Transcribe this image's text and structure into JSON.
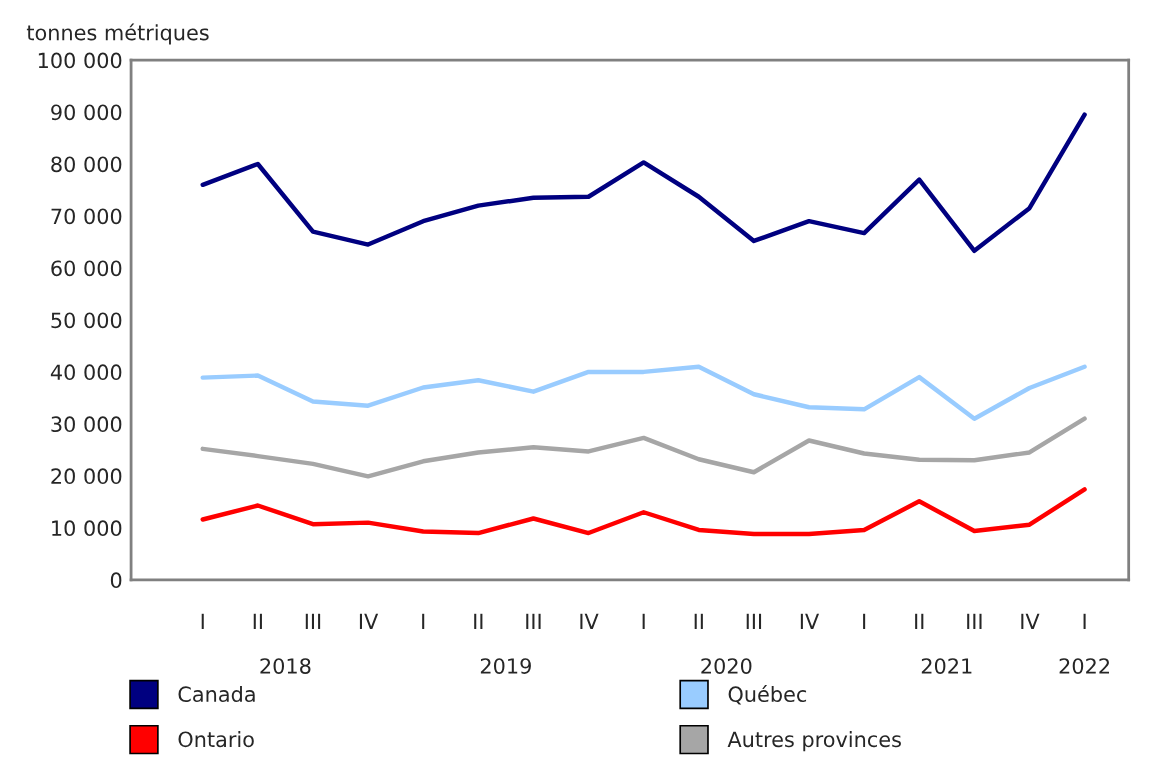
{
  "chart_data": {
    "type": "line",
    "ylabel": "tonnes métriques",
    "categories": [
      "I",
      "II",
      "III",
      "IV",
      "I",
      "II",
      "III",
      "IV",
      "I",
      "II",
      "III",
      "IV",
      "I",
      "II",
      "III",
      "IV",
      "I"
    ],
    "annotations": [
      "2018",
      "2019",
      "2020",
      "2021",
      "2022"
    ],
    "series": [
      {
        "name": "Canada",
        "color": "#000080",
        "values": [
          76000,
          80000,
          67000,
          64500,
          69000,
          72000,
          73500,
          73700,
          80300,
          73700,
          65200,
          69000,
          66700,
          77000,
          63300,
          71500,
          89500
        ]
      },
      {
        "name": "Québec",
        "color": "#99ccff",
        "values": [
          38900,
          39300,
          34300,
          33500,
          37000,
          38400,
          36200,
          40000,
          40000,
          41000,
          35700,
          33200,
          32800,
          39000,
          31000,
          36900,
          41000
        ]
      },
      {
        "name": "Ontario",
        "color": "#ff0000",
        "values": [
          11600,
          14300,
          10700,
          11000,
          9300,
          9000,
          11800,
          9000,
          13000,
          9600,
          8800,
          8800,
          9600,
          15100,
          9400,
          10600,
          17400
        ]
      },
      {
        "name": "Autres provinces",
        "color": "#a6a6a6",
        "values": [
          25200,
          23800,
          22300,
          19900,
          22800,
          24500,
          25500,
          24700,
          27300,
          23200,
          20700,
          26800,
          24300,
          23100,
          23000,
          24500,
          31000
        ]
      }
    ],
    "ylim": [
      0,
      100000
    ],
    "yticks": [
      0,
      {
        "value": 10000,
        "label": "10 000"
      },
      {
        "value": 20000,
        "label": "20 000"
      },
      {
        "value": 30000,
        "label": "30 000"
      },
      {
        "value": 40000,
        "label": "40 000"
      },
      {
        "value": 50000,
        "label": "50 000"
      },
      {
        "value": 60000,
        "label": "60 000"
      },
      {
        "value": 70000,
        "label": "70 000"
      },
      {
        "value": 80000,
        "label": "80 000"
      },
      {
        "value": 90000,
        "label": "90 000"
      },
      {
        "value": 100000,
        "label": "100 000"
      }
    ],
    "grid": false,
    "legend": "bottom",
    "marker": "none",
    "line_style": "solid"
  }
}
